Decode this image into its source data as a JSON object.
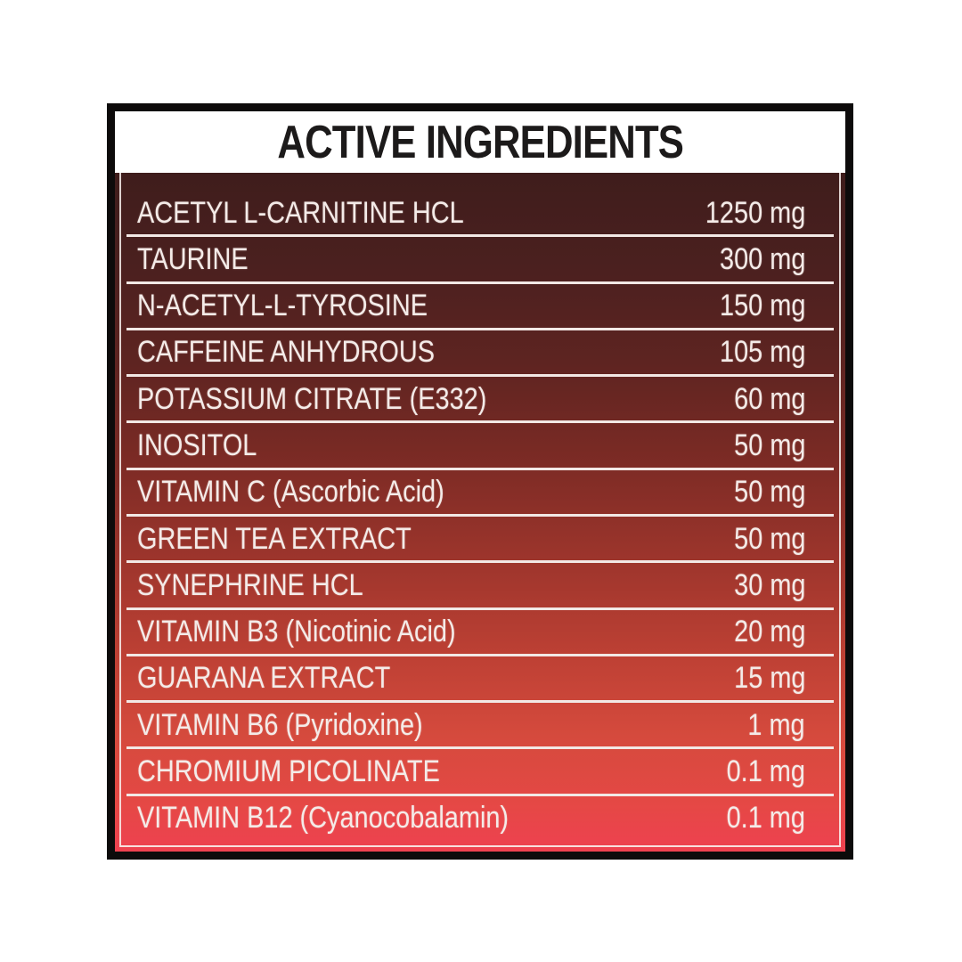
{
  "panel": {
    "title": "ACTIVE INGREDIENTS"
  },
  "table": {
    "rows": [
      {
        "name": "ACETYL L-CARNITINE HCL",
        "amount": "1250 mg"
      },
      {
        "name": "TAURINE",
        "amount": "300 mg"
      },
      {
        "name": "N-ACETYL-L-TYROSINE",
        "amount": "150 mg"
      },
      {
        "name": "CAFFEINE ANHYDROUS",
        "amount": "105 mg"
      },
      {
        "name": "POTASSIUM CITRATE (E332)",
        "amount": "60 mg"
      },
      {
        "name": "INOSITOL",
        "amount": "50 mg"
      },
      {
        "name": "VITAMIN C (Ascorbic Acid)",
        "amount": "50 mg"
      },
      {
        "name": "GREEN TEA EXTRACT",
        "amount": "50 mg"
      },
      {
        "name": "SYNEPHRINE HCL",
        "amount": "30 mg"
      },
      {
        "name": "VITAMIN B3 (Nicotinic Acid)",
        "amount": "20 mg"
      },
      {
        "name": "GUARANA EXTRACT",
        "amount": "15 mg"
      },
      {
        "name": "VITAMIN B6 (Pyridoxine)",
        "amount": "1 mg"
      },
      {
        "name": "CHROMIUM PICOLINATE",
        "amount": "0.1 mg"
      },
      {
        "name": "VITAMIN B12 (Cyanocobalamin)",
        "amount": "0.1 mg"
      }
    ]
  },
  "colors": {
    "frame": "#0d0b0b",
    "header_bg": "#ffffff",
    "title_text": "#1c1a1a",
    "row_text": "#f4ebe8",
    "divider": "#f2e8e5",
    "gradient_top": "#3f1d1c",
    "gradient_mid": "#9d352c",
    "gradient_bottom": "#ee4150"
  }
}
